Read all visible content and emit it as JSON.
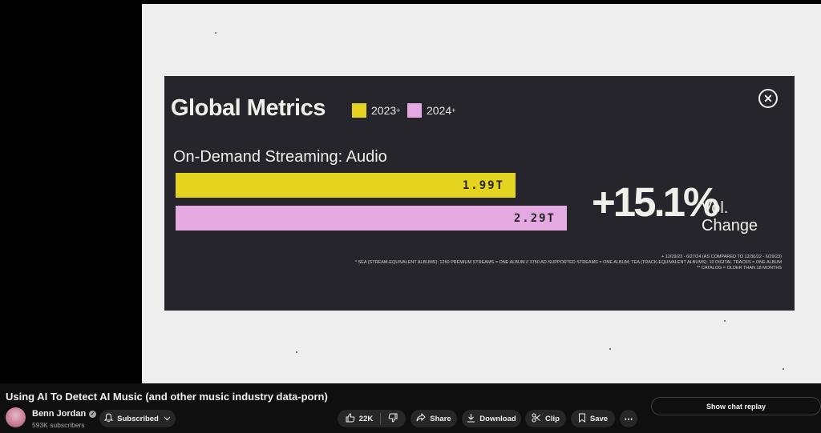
{
  "slide": {
    "title": "Global Metrics",
    "legend": [
      {
        "label": "2023",
        "sup": "+",
        "color": "#e4d41f"
      },
      {
        "label": "2024",
        "sup": "+",
        "color": "#e5a9e2"
      }
    ],
    "subtitle": "On-Demand Streaming: Audio",
    "bars": [
      {
        "label": "1.99T",
        "value": 1.99,
        "color": "#e4d41f"
      },
      {
        "label": "2.29T",
        "value": 2.29,
        "color": "#e5a9e2"
      }
    ],
    "change_value": "+15.1%",
    "change_label_line1": "Vol.",
    "change_label_line2": "Change",
    "footnotes": [
      "+ 12/29/23 - 6/27/24 (AS COMPARED TO 12/30/22 - 6/29/23)",
      "* SEA (STREAM-EQUIVALENT ALBUMS): 1250 PREMIUM STREAMS = ONE ALBUM // 3750 AD-SUPPORTED STREAMS = ONE ALBUM; TEA (TRACK-EQUIVALENT ALBUMS): 10 DIGITAL TRACKS = ONE ALBUM",
      "** CATALOG = OLDER THAN 18 MONTHS"
    ],
    "close_icon": "close-circle-icon"
  },
  "video": {
    "title": "Using AI To Detect AI Music (and other music industry data-porn)"
  },
  "channel": {
    "name": "Benn Jordan",
    "subscribers": "593K subscribers",
    "verified_icon": "verified-check-icon"
  },
  "actions": {
    "subscribed": "Subscribed",
    "likes": "22K",
    "share": "Share",
    "download": "Download",
    "clip": "Clip",
    "save": "Save",
    "more": "⋯"
  },
  "chat": {
    "replay_label": "Show chat replay"
  }
}
